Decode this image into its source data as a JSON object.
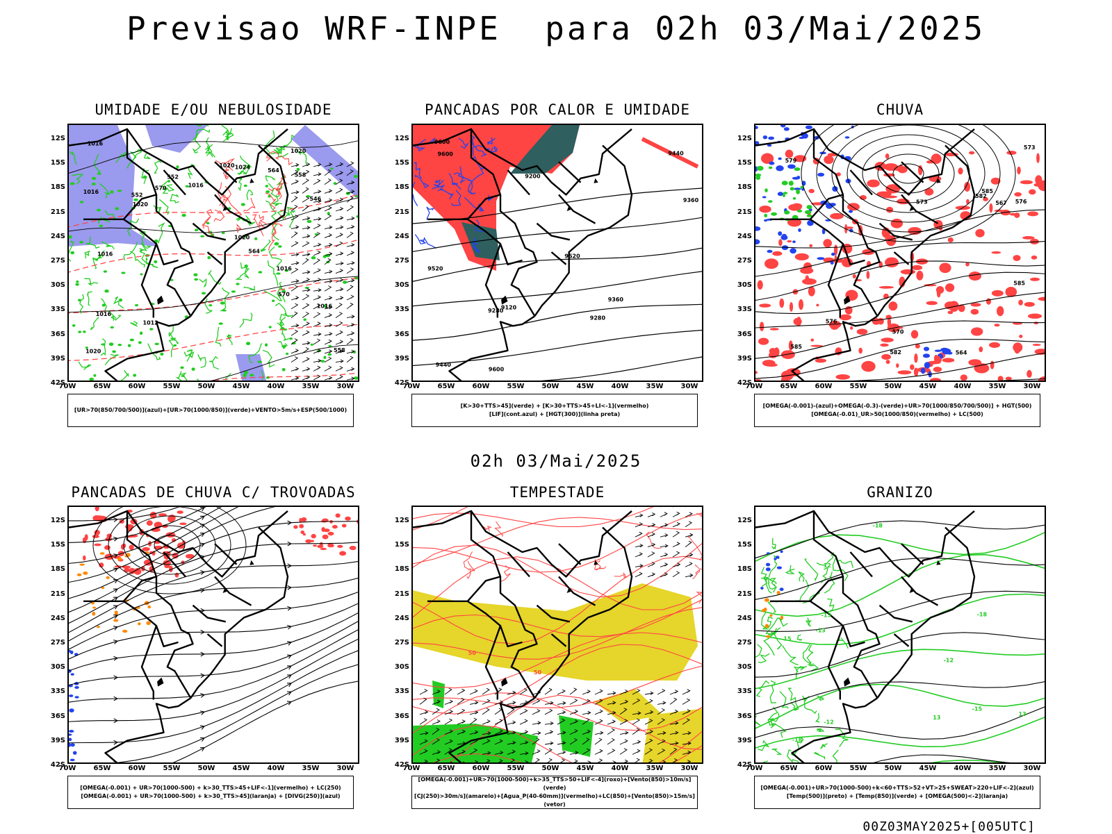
{
  "header": {
    "title": "Previsao WRF-INPE  para 02h 03/Mai/2025",
    "mid_title": "02h 03/Mai/2025",
    "footer": "00Z03MAY2025+[005UTC]"
  },
  "axes": {
    "lat_labels": [
      "12S",
      "15S",
      "18S",
      "21S",
      "24S",
      "27S",
      "30S",
      "33S",
      "36S",
      "39S",
      "42S"
    ],
    "lon_labels": [
      "70W",
      "65W",
      "60W",
      "55W",
      "50W",
      "45W",
      "40W",
      "35W",
      "30W"
    ]
  },
  "colors": {
    "blue_shade": "#9a9aee",
    "green": "#22cc22",
    "red": "#ff4444",
    "dark_teal": "#2f5f5f",
    "yellow": "#e6d52a",
    "blue": "#2244ee",
    "orange": "#ff8800",
    "black": "#000000"
  },
  "panels": [
    {
      "title": "UMIDADE E/OU NEBULOSIDADE",
      "legend": [
        "[UR>70(850/700/500)](azul)+[UR>70(1000/850)](verde)+VENTO>5m/s+ESP(500/1000)"
      ],
      "contour_labels": [
        "1016",
        "1012",
        "1016",
        "1016",
        "1020",
        "1016",
        "1020",
        "1020",
        "1024",
        "1020",
        "1016",
        "1020",
        "1016",
        "1016",
        "564",
        "570",
        "564",
        "558",
        "558",
        "552",
        "546",
        "552",
        "570"
      ]
    },
    {
      "title": "PANCADAS POR CALOR E UMIDADE",
      "legend": [
        "[K>30+TTS>45](verde) + [K>30+TTS>45+LI<-1](vermelho)",
        "[LIF](cont.azul) + [HGT(300)](linha preta)"
      ],
      "contour_labels": [
        "9600",
        "9600",
        "9520",
        "9440",
        "9360",
        "9280",
        "9200",
        "9120",
        "9440",
        "9360",
        "9280",
        "9520",
        "9600"
      ]
    },
    {
      "title": "CHUVA",
      "legend": [
        "[OMEGA(-0.001)-(azul)+OMEGA(-0.3)-(verde)+UR>70(1000/850/700/500)] + HGT(500)",
        "[OMEGA(-0.01)_UR>50(1000/850)(vermelho) + LC(500)"
      ],
      "contour_labels": [
        "585",
        "585",
        "585",
        "582",
        "582",
        "576",
        "576",
        "573",
        "570",
        "567",
        "564",
        "579",
        "573"
      ]
    },
    {
      "title": "PANCADAS DE CHUVA C/ TROVOADAS",
      "legend": [
        "[OMEGA(-0.001) + UR>70(1000-500) + k>30_TTS>45+LIF<-1](vermelho) + LC(250)",
        "[OMEGA(-0.001) + UR>70(1000-500) + k>30_TTS>45](laranja) + [DIVG(250)](azul)"
      ],
      "contour_labels": []
    },
    {
      "title": "TEMPESTADE",
      "legend": [
        "[OMEGA(-0.001)+UR>70(1000-500)+k>35_TTS>50+LIF<-4](roxo)+[Vento(850)>10m/s](verde)",
        "[CJ(250)>30m/s](amarelo)+[Agua_P(40-60mm)](vermelho)+LC(850)+[Vento(850)>15m/s](vetor)"
      ],
      "contour_labels": [
        "50",
        "50"
      ]
    },
    {
      "title": "GRANIZO",
      "legend": [
        "[OMEGA(-0.001)+UR>70(1000-500)+k<60+TTS>52+VT>25+SWEAT>220+LIF<-2](azul)",
        "[Temp(500)](preto) + [Temp(850)](verde) + [OMEGA(500)<-2](laranja)"
      ],
      "contour_labels": [
        "-13",
        "-12",
        "-15",
        "15",
        "12",
        "13",
        "-12",
        "-18",
        "-18",
        "-18",
        "-13",
        "13"
      ]
    }
  ]
}
